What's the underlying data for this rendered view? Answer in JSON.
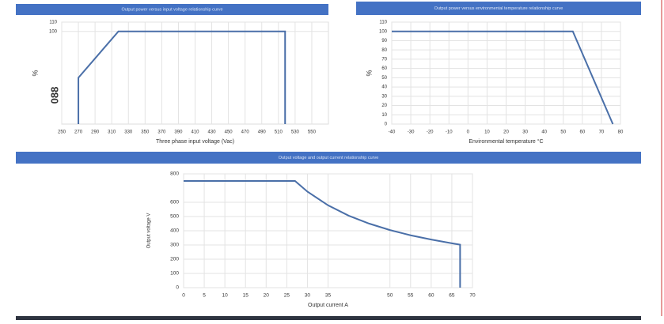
{
  "chart_data": [
    {
      "type": "line",
      "title": "Output power versus input voltage relationship curve",
      "y_label": "%",
      "y_note": "088",
      "x_label": "Three phase input voltage (Vac)",
      "x": [
        270,
        270,
        318,
        518,
        518
      ],
      "values": [
        0,
        50,
        100,
        100,
        0
      ],
      "color": "#4a6fa8",
      "xlim": [
        250,
        570
      ],
      "xticks": [
        250,
        270,
        290,
        310,
        330,
        350,
        370,
        390,
        410,
        430,
        450,
        470,
        490,
        510,
        530,
        550
      ],
      "ylim": [
        0,
        110
      ],
      "yticks": [
        100,
        110
      ],
      "grid": true
    },
    {
      "type": "line",
      "title": "Output power versus environmental temperature relationship curve",
      "y_label": "%",
      "x_label": "Environmental temperature °C",
      "x": [
        -40,
        55,
        76
      ],
      "values": [
        100,
        100,
        0
      ],
      "color": "#4a6fa8",
      "xlim": [
        -40,
        80
      ],
      "xticks": [
        -40,
        -30,
        -20,
        -10,
        0,
        10,
        20,
        30,
        40,
        50,
        60,
        70,
        80
      ],
      "ylim": [
        0,
        110
      ],
      "yticks": [
        0,
        10,
        20,
        30,
        40,
        50,
        60,
        70,
        80,
        90,
        100,
        110
      ],
      "grid": true
    },
    {
      "type": "line",
      "title": "Output voltage and output current relationship curve",
      "y_label": "Output voltage V",
      "x_label": "Output current A",
      "x": [
        0,
        27,
        30,
        35,
        40,
        45,
        50,
        55,
        60,
        65,
        67,
        67
      ],
      "values": [
        750,
        750,
        675,
        579,
        506,
        450,
        405,
        368,
        338,
        312,
        302,
        0
      ],
      "color": "#4a6fa8",
      "xlim": [
        0,
        70
      ],
      "xticks": [
        0,
        5,
        10,
        15,
        20,
        25,
        30,
        35,
        50,
        55,
        60,
        65,
        70
      ],
      "ylim": [
        0,
        800
      ],
      "yticks": [
        0,
        100,
        200,
        300,
        400,
        500,
        600,
        800
      ],
      "grid": true
    }
  ]
}
